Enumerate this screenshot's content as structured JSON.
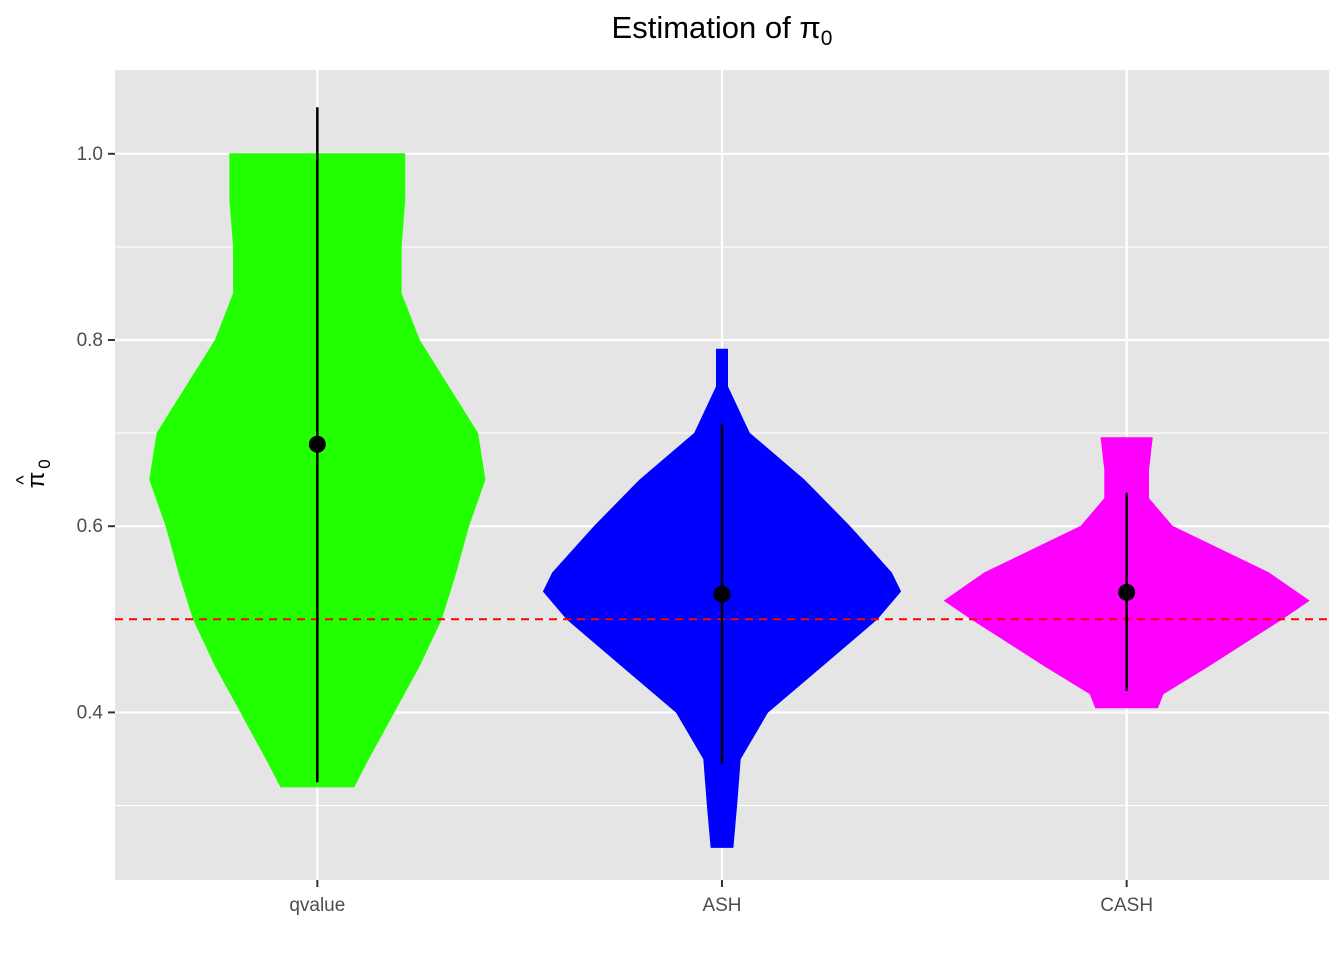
{
  "chart_data": {
    "type": "violin",
    "title": {
      "main": "Estimation of π",
      "subscript": "0"
    },
    "ylabel": {
      "symbol": "π",
      "hat": "^",
      "subscript": "0"
    },
    "xlabel": "",
    "categories": [
      "qvalue",
      "ASH",
      "CASH"
    ],
    "ylim": [
      0.22,
      1.09
    ],
    "yticks": [
      0.4,
      0.6,
      0.8,
      1.0
    ],
    "ytick_labels": [
      "0.4",
      "0.6",
      "0.8",
      "1.0"
    ],
    "yminor": [
      0.3,
      0.5,
      0.7,
      0.9
    ],
    "grid": true,
    "reference_line": {
      "y": 0.5,
      "color": "#ff0000",
      "style": "dashed"
    },
    "series": [
      {
        "category": "qvalue",
        "color": "#22ff00",
        "density": [
          [
            0.32,
            0.2
          ],
          [
            0.35,
            0.28
          ],
          [
            0.4,
            0.42
          ],
          [
            0.45,
            0.56
          ],
          [
            0.5,
            0.68
          ],
          [
            0.55,
            0.76
          ],
          [
            0.6,
            0.83
          ],
          [
            0.65,
            0.92
          ],
          [
            0.7,
            0.88
          ],
          [
            0.75,
            0.72
          ],
          [
            0.8,
            0.56
          ],
          [
            0.85,
            0.46
          ],
          [
            0.9,
            0.46
          ],
          [
            0.95,
            0.48
          ],
          [
            1.0,
            0.48
          ]
        ],
        "mean": 0.688,
        "whisker": [
          0.325,
          1.05
        ]
      },
      {
        "category": "ASH",
        "color": "#0000ff",
        "density": [
          [
            0.255,
            0.06
          ],
          [
            0.3,
            0.08
          ],
          [
            0.35,
            0.1
          ],
          [
            0.4,
            0.25
          ],
          [
            0.45,
            0.55
          ],
          [
            0.5,
            0.85
          ],
          [
            0.53,
            0.98
          ],
          [
            0.55,
            0.93
          ],
          [
            0.6,
            0.7
          ],
          [
            0.65,
            0.45
          ],
          [
            0.7,
            0.15
          ],
          [
            0.75,
            0.03
          ],
          [
            0.79,
            0.03
          ]
        ],
        "mean": 0.527,
        "whisker": [
          0.345,
          0.71
        ]
      },
      {
        "category": "CASH",
        "color": "#ff00ff",
        "density": [
          [
            0.405,
            0.17
          ],
          [
            0.42,
            0.2
          ],
          [
            0.45,
            0.45
          ],
          [
            0.5,
            0.85
          ],
          [
            0.52,
            1.0
          ],
          [
            0.55,
            0.78
          ],
          [
            0.6,
            0.25
          ],
          [
            0.63,
            0.12
          ],
          [
            0.66,
            0.12
          ],
          [
            0.695,
            0.14
          ]
        ],
        "mean": 0.529,
        "whisker": [
          0.423,
          0.636
        ]
      }
    ]
  }
}
